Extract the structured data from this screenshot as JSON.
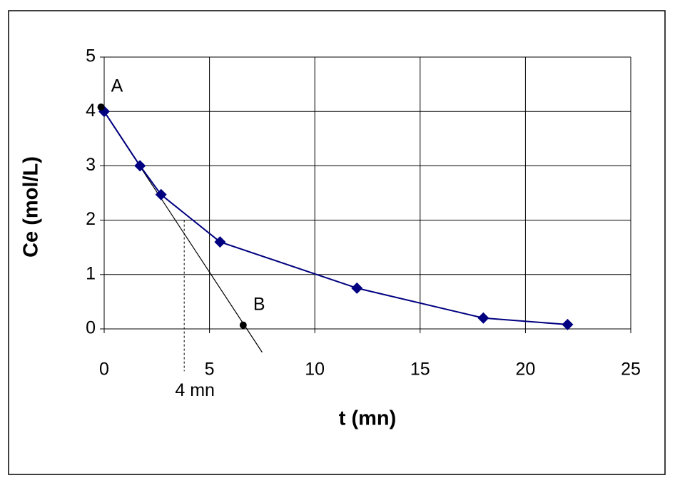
{
  "chart_data": {
    "type": "line",
    "x_label": "t (mn)",
    "y_label": "Ce (mol/L)",
    "series": [
      {
        "name": "Ce",
        "color": "#000080",
        "x": [
          0,
          1.7,
          2.7,
          5.5,
          12,
          18,
          22
        ],
        "values": [
          4,
          3,
          2.47,
          1.6,
          0.75,
          0.2,
          0.08
        ]
      }
    ],
    "xlim": [
      0,
      25
    ],
    "xticks": [
      0,
      5,
      10,
      15,
      20,
      25
    ],
    "ylim": [
      0,
      5
    ],
    "yticks": [
      0,
      1,
      2,
      3,
      4,
      5
    ],
    "grid": true,
    "points": [
      {
        "label": "A",
        "x": -0.15,
        "y": 4.08
      },
      {
        "label": "B",
        "x": 6.6,
        "y": 0.07
      }
    ],
    "tangent": {
      "x": [
        -0.15,
        7.5
      ],
      "y": [
        4.08,
        -0.43
      ]
    },
    "marker_line": {
      "label": "4 mn",
      "x": 3.8,
      "y": [
        2.0,
        -0.78
      ]
    }
  }
}
